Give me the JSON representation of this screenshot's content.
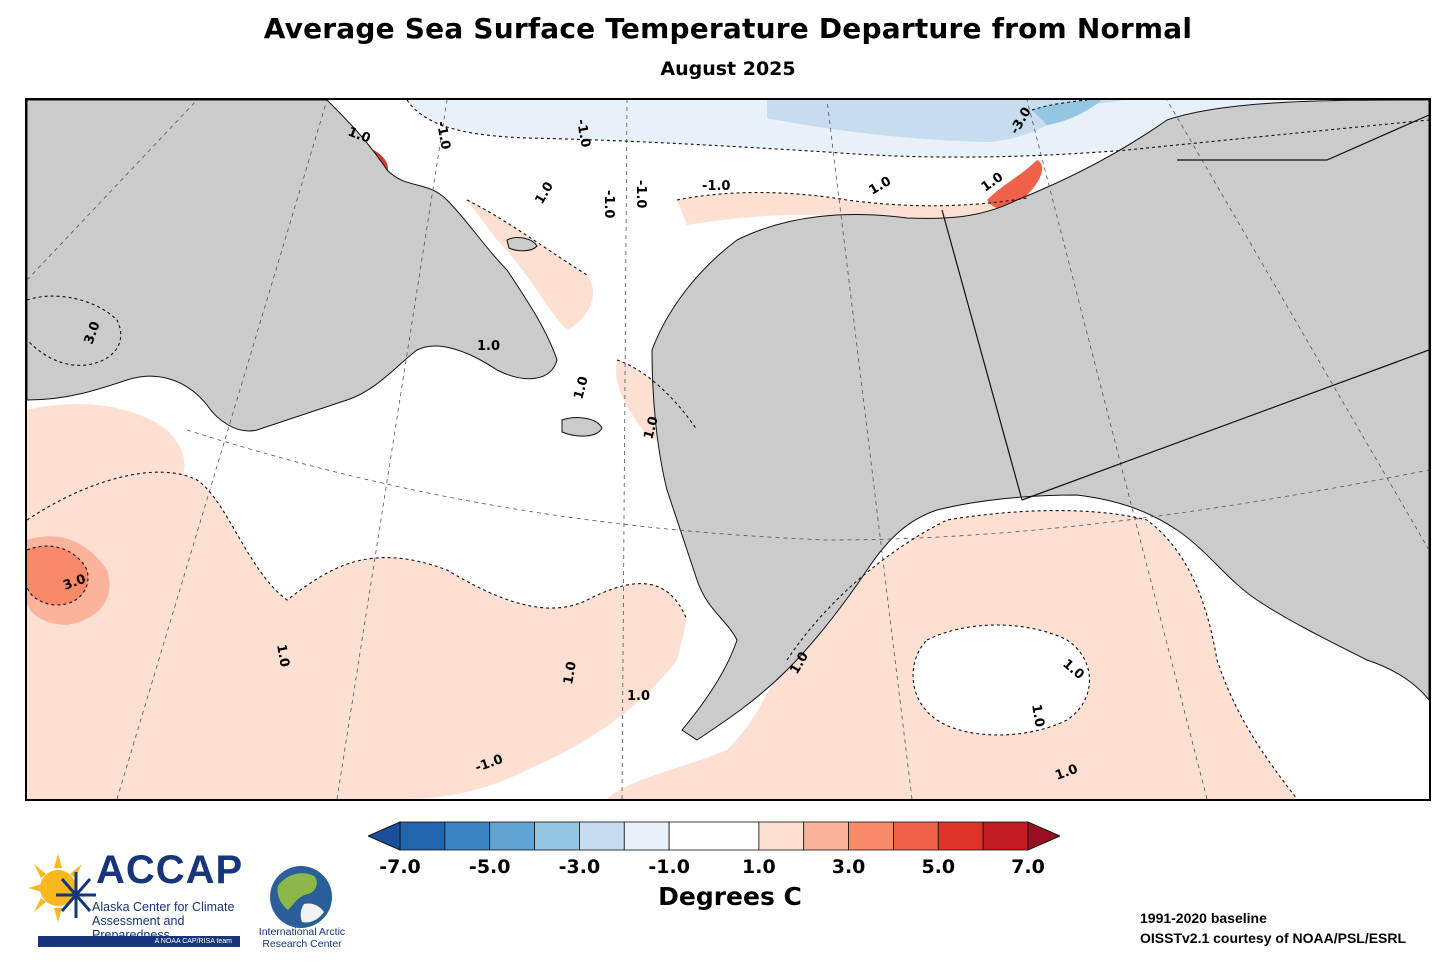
{
  "title": "Average Sea Surface Temperature Departure from Normal",
  "subtitle": "August 2025",
  "colorbar": {
    "label": "Degrees C",
    "ticks": [
      "-7.0",
      "-5.0",
      "-3.0",
      "-1.0",
      "1.0",
      "3.0",
      "5.0",
      "7.0"
    ],
    "bins": [
      {
        "from": -7.0,
        "to": -6.0,
        "color": "#2166ac"
      },
      {
        "from": -6.0,
        "to": -5.0,
        "color": "#3a84c1"
      },
      {
        "from": -5.0,
        "to": -4.0,
        "color": "#5fa4d3"
      },
      {
        "from": -4.0,
        "to": -3.0,
        "color": "#94c5e1"
      },
      {
        "from": -3.0,
        "to": -2.0,
        "color": "#c7dcef"
      },
      {
        "from": -2.0,
        "to": -1.0,
        "color": "#e8f0fa"
      },
      {
        "from": -1.0,
        "to": 1.0,
        "color": "#ffffff"
      },
      {
        "from": 1.0,
        "to": 2.0,
        "color": "#fde0d2"
      },
      {
        "from": 2.0,
        "to": 3.0,
        "color": "#fbb49b"
      },
      {
        "from": 3.0,
        "to": 4.0,
        "color": "#f88a6a"
      },
      {
        "from": 4.0,
        "to": 5.0,
        "color": "#f06149"
      },
      {
        "from": 5.0,
        "to": 6.0,
        "color": "#dd3328"
      },
      {
        "from": 6.0,
        "to": 7.0,
        "color": "#c11b24"
      }
    ],
    "under_color": "#1a4f9c",
    "over_color": "#9b0e1f"
  },
  "map": {
    "land_color": "#cbcbcb",
    "contour_labels": [
      "1.0",
      "1.0",
      "1.0",
      "1.0",
      "1.0",
      "1.0",
      "1.0",
      "1.0",
      "1.0",
      "1.0",
      "1.0",
      "1.0",
      "1.0",
      "1.0",
      "-1.0",
      "-1.0",
      "-1.0",
      "-1.0",
      "-1.0",
      "-1.0",
      "3.0",
      "3.0",
      "-3.0"
    ]
  },
  "logos": {
    "accap_name": "ACCAP",
    "accap_line1": "Alaska Center for Climate",
    "accap_line2": "Assessment and Preparedness",
    "accap_tag": "A NOAA CAP/RISA team",
    "iarc_line1": "International Arctic",
    "iarc_line2": "Research Center"
  },
  "credits": {
    "baseline": "1991-2020 baseline",
    "source": "OISSTv2.1 courtesy of NOAA/PSL/ESRL"
  }
}
